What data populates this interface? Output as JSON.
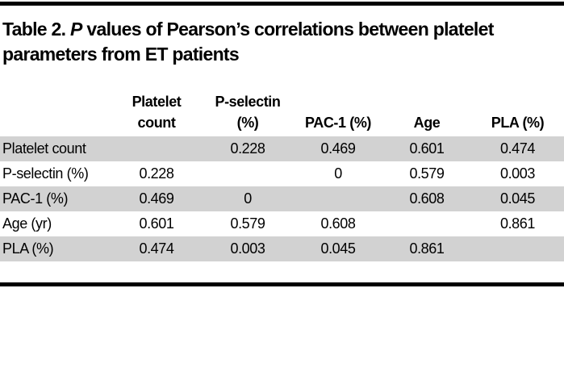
{
  "title": {
    "prefix": "Table 2.",
    "italic_term": "P",
    "line1_rest": "values of Pearson’s correlations between platelet",
    "line2": "parameters from ET patients"
  },
  "table": {
    "corner_label": "",
    "columns": [
      {
        "lines": [
          "Platelet",
          "count"
        ]
      },
      {
        "lines": [
          "P-selectin",
          "(%)"
        ]
      },
      {
        "lines": [
          "PAC-1 (%)"
        ]
      },
      {
        "lines": [
          "Age"
        ]
      },
      {
        "lines": [
          "PLA (%)"
        ]
      }
    ],
    "rows": [
      {
        "label": "Platelet count",
        "values": [
          "",
          "0.228",
          "0.469",
          "0.601",
          "0.474"
        ]
      },
      {
        "label": "P-selectin (%)",
        "values": [
          "0.228",
          "",
          "0",
          "0.579",
          "0.003"
        ]
      },
      {
        "label": "PAC-1 (%)",
        "values": [
          "0.469",
          "0",
          "",
          "0.608",
          "0.045"
        ]
      },
      {
        "label": "Age (yr)",
        "values": [
          "0.601",
          "0.579",
          "0.608",
          "",
          "0.861"
        ]
      },
      {
        "label": "PLA (%)",
        "values": [
          "0.474",
          "0.003",
          "0.045",
          "0.861",
          ""
        ]
      }
    ]
  },
  "colors": {
    "background": "#ffffff",
    "text": "#000000",
    "rule": "#000000",
    "stripe": "#d2d2d2"
  }
}
